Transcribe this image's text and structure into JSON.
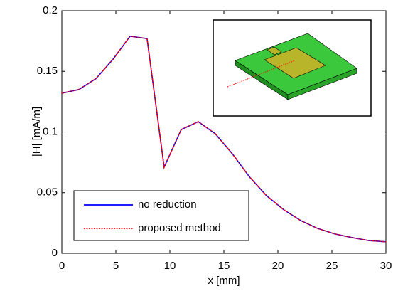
{
  "chart_data": {
    "type": "line",
    "x_label": "x [mm]",
    "y_label": "|H| [mA/m]",
    "x": [
      0,
      1.58,
      3.16,
      4.74,
      6.32,
      7.89,
      9.47,
      11.05,
      12.63,
      14.21,
      15.79,
      17.37,
      18.95,
      20.53,
      22.11,
      23.68,
      25.26,
      26.84,
      28.42,
      30
    ],
    "series": [
      {
        "name": "no reduction",
        "color": "#0000ff",
        "style": "solid",
        "values": [
          0.132,
          0.135,
          0.144,
          0.16,
          0.179,
          0.177,
          0.071,
          0.102,
          0.1085,
          0.0985,
          0.082,
          0.063,
          0.0475,
          0.036,
          0.027,
          0.0205,
          0.016,
          0.013,
          0.0105,
          0.0095
        ]
      },
      {
        "name": "proposed method",
        "color": "#ff0000",
        "style": "dotted",
        "values": [
          0.132,
          0.135,
          0.144,
          0.16,
          0.179,
          0.177,
          0.071,
          0.102,
          0.1085,
          0.0985,
          0.082,
          0.063,
          0.0475,
          0.036,
          0.027,
          0.0205,
          0.016,
          0.013,
          0.0105,
          0.0095
        ]
      }
    ],
    "xlim": [
      0,
      30
    ],
    "xticks": [
      0,
      5,
      10,
      15,
      20,
      25,
      30
    ],
    "ylim": [
      0,
      0.2
    ],
    "yticks": [
      0,
      0.05,
      0.1,
      0.15,
      0.2
    ],
    "grid": false,
    "legend": "lower-left"
  }
}
